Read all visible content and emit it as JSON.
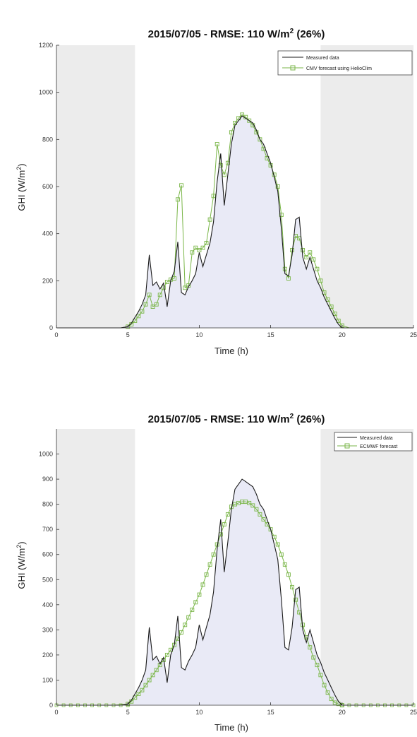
{
  "chart_data": [
    {
      "type": "line",
      "title_main": "2015/07/05 - RMSE: 110 W/m",
      "title_sup": "2",
      "title_tail": " (26%)",
      "xlabel": "Time (h)",
      "ylabel_main": "GHI (W/m",
      "ylabel_sup": "2",
      "ylabel_tail": ")",
      "xlim": [
        0,
        25
      ],
      "ylim": [
        0,
        1200
      ],
      "xticks": [
        "0",
        "5",
        "10",
        "15",
        "20",
        "25"
      ],
      "yticks": [
        "0",
        "200",
        "400",
        "600",
        "800",
        "1000",
        "1200"
      ],
      "night_bands": [
        [
          0,
          5.5
        ],
        [
          18.5,
          25
        ]
      ],
      "legend_position": "top-right",
      "colors": {
        "measured": "#1a1a1a",
        "forecast": "#7ab648",
        "fill": "#e9eaf6",
        "night": "#ececec"
      },
      "series": [
        {
          "name": "Measured data",
          "x": [
            0,
            4.5,
            5,
            5.25,
            5.5,
            5.75,
            6,
            6.25,
            6.5,
            6.75,
            7,
            7.25,
            7.5,
            7.75,
            8,
            8.25,
            8.5,
            8.75,
            9,
            9.25,
            9.5,
            9.75,
            10,
            10.25,
            10.5,
            10.75,
            11,
            11.25,
            11.5,
            11.75,
            12,
            12.25,
            12.5,
            12.75,
            13,
            13.25,
            13.5,
            13.75,
            14,
            14.25,
            14.5,
            14.75,
            15,
            15.25,
            15.5,
            15.75,
            16,
            16.25,
            16.5,
            16.75,
            17,
            17.25,
            17.5,
            17.75,
            18,
            18.25,
            18.5,
            18.75,
            19,
            19.25,
            19.5,
            19.75,
            20,
            20.5,
            25
          ],
          "y": [
            0,
            0,
            5,
            20,
            45,
            70,
            100,
            140,
            310,
            180,
            195,
            165,
            190,
            90,
            200,
            240,
            365,
            150,
            140,
            175,
            200,
            230,
            320,
            260,
            310,
            360,
            450,
            620,
            740,
            520,
            650,
            780,
            860,
            880,
            900,
            890,
            880,
            870,
            840,
            800,
            780,
            740,
            700,
            640,
            580,
            420,
            230,
            220,
            310,
            460,
            470,
            300,
            250,
            300,
            250,
            200,
            170,
            130,
            100,
            70,
            40,
            15,
            0,
            0,
            0
          ]
        },
        {
          "name": "CMV forecast using HelioClim",
          "x": [
            0,
            4.5,
            5,
            5.25,
            5.5,
            5.75,
            6,
            6.25,
            6.5,
            6.75,
            7,
            7.25,
            7.5,
            7.75,
            8,
            8.25,
            8.5,
            8.75,
            9,
            9.25,
            9.5,
            9.75,
            10,
            10.25,
            10.5,
            10.75,
            11,
            11.25,
            11.5,
            11.75,
            12,
            12.25,
            12.5,
            12.75,
            13,
            13.25,
            13.5,
            13.75,
            14,
            14.25,
            14.5,
            14.75,
            15,
            15.25,
            15.5,
            15.75,
            16,
            16.25,
            16.5,
            16.75,
            17,
            17.25,
            17.5,
            17.75,
            18,
            18.25,
            18.5,
            18.75,
            19,
            19.25,
            19.5,
            19.75,
            20,
            20.5,
            25
          ],
          "y": [
            0,
            0,
            5,
            15,
            30,
            50,
            70,
            100,
            140,
            90,
            100,
            140,
            170,
            195,
            205,
            210,
            545,
            605,
            170,
            180,
            320,
            340,
            330,
            340,
            360,
            460,
            560,
            780,
            690,
            650,
            700,
            830,
            870,
            890,
            905,
            895,
            880,
            860,
            830,
            800,
            760,
            720,
            690,
            650,
            600,
            480,
            250,
            210,
            330,
            390,
            380,
            330,
            300,
            320,
            290,
            250,
            200,
            150,
            120,
            90,
            60,
            30,
            10,
            0,
            0
          ]
        }
      ]
    },
    {
      "type": "line",
      "title_main": "2015/07/05 - RMSE: 110 W/m",
      "title_sup": "2",
      "title_tail": " (26%)",
      "xlabel": "Time (h)",
      "ylabel_main": "GHI (W/m",
      "ylabel_sup": "2",
      "ylabel_tail": ")",
      "xlim": [
        0,
        25
      ],
      "ylim": [
        0,
        1100
      ],
      "xticks": [
        "0",
        "5",
        "10",
        "15",
        "20",
        "25"
      ],
      "yticks": [
        "0",
        "100",
        "200",
        "300",
        "400",
        "500",
        "600",
        "700",
        "800",
        "900",
        "1000"
      ],
      "night_bands": [
        [
          0,
          5.5
        ],
        [
          18.5,
          25
        ]
      ],
      "legend_position": "top-right",
      "colors": {
        "measured": "#1a1a1a",
        "forecast": "#7ab648",
        "fill": "#e9eaf6",
        "night": "#ececec"
      },
      "series": [
        {
          "name": "Measured data",
          "x": [
            0,
            4.5,
            5,
            5.25,
            5.5,
            5.75,
            6,
            6.25,
            6.5,
            6.75,
            7,
            7.25,
            7.5,
            7.75,
            8,
            8.25,
            8.5,
            8.75,
            9,
            9.25,
            9.5,
            9.75,
            10,
            10.25,
            10.5,
            10.75,
            11,
            11.25,
            11.5,
            11.75,
            12,
            12.25,
            12.5,
            12.75,
            13,
            13.25,
            13.5,
            13.75,
            14,
            14.25,
            14.5,
            14.75,
            15,
            15.25,
            15.5,
            15.75,
            16,
            16.25,
            16.5,
            16.75,
            17,
            17.25,
            17.5,
            17.75,
            18,
            18.25,
            18.5,
            18.75,
            19,
            19.25,
            19.5,
            19.75,
            20,
            20.5,
            25
          ],
          "y": [
            0,
            0,
            5,
            20,
            45,
            70,
            100,
            140,
            310,
            180,
            195,
            165,
            190,
            90,
            200,
            240,
            355,
            150,
            140,
            175,
            200,
            230,
            320,
            260,
            310,
            360,
            450,
            620,
            740,
            530,
            650,
            780,
            860,
            880,
            900,
            890,
            880,
            870,
            840,
            800,
            780,
            740,
            700,
            640,
            580,
            420,
            230,
            220,
            310,
            460,
            470,
            300,
            250,
            300,
            250,
            200,
            170,
            130,
            100,
            70,
            40,
            15,
            0,
            0,
            0
          ]
        },
        {
          "name": "ECMWF forecast",
          "x": [
            0,
            1,
            2,
            3,
            4,
            5,
            5.25,
            5.5,
            5.75,
            6,
            6.25,
            6.5,
            6.75,
            7,
            7.25,
            7.5,
            7.75,
            8,
            8.25,
            8.5,
            8.75,
            9,
            9.25,
            9.5,
            9.75,
            10,
            10.25,
            10.5,
            10.75,
            11,
            11.25,
            11.5,
            11.75,
            12,
            12.25,
            12.5,
            12.75,
            13,
            13.25,
            13.5,
            13.75,
            14,
            14.25,
            14.5,
            14.75,
            15,
            15.25,
            15.5,
            15.75,
            16,
            16.25,
            16.5,
            16.75,
            17,
            17.25,
            17.5,
            17.75,
            18,
            18.25,
            18.5,
            18.75,
            19,
            19.25,
            19.5,
            19.75,
            20,
            21,
            22,
            23,
            24,
            25
          ],
          "y": [
            0,
            0,
            0,
            0,
            0,
            5,
            15,
            30,
            45,
            60,
            80,
            100,
            120,
            140,
            160,
            180,
            200,
            220,
            240,
            265,
            290,
            320,
            350,
            380,
            410,
            440,
            480,
            520,
            560,
            600,
            640,
            680,
            720,
            760,
            790,
            800,
            805,
            810,
            810,
            805,
            795,
            780,
            760,
            740,
            720,
            700,
            670,
            640,
            600,
            560,
            520,
            470,
            420,
            370,
            320,
            270,
            230,
            190,
            160,
            120,
            80,
            50,
            25,
            10,
            5,
            0,
            0,
            0,
            0,
            0,
            0
          ]
        }
      ]
    }
  ]
}
